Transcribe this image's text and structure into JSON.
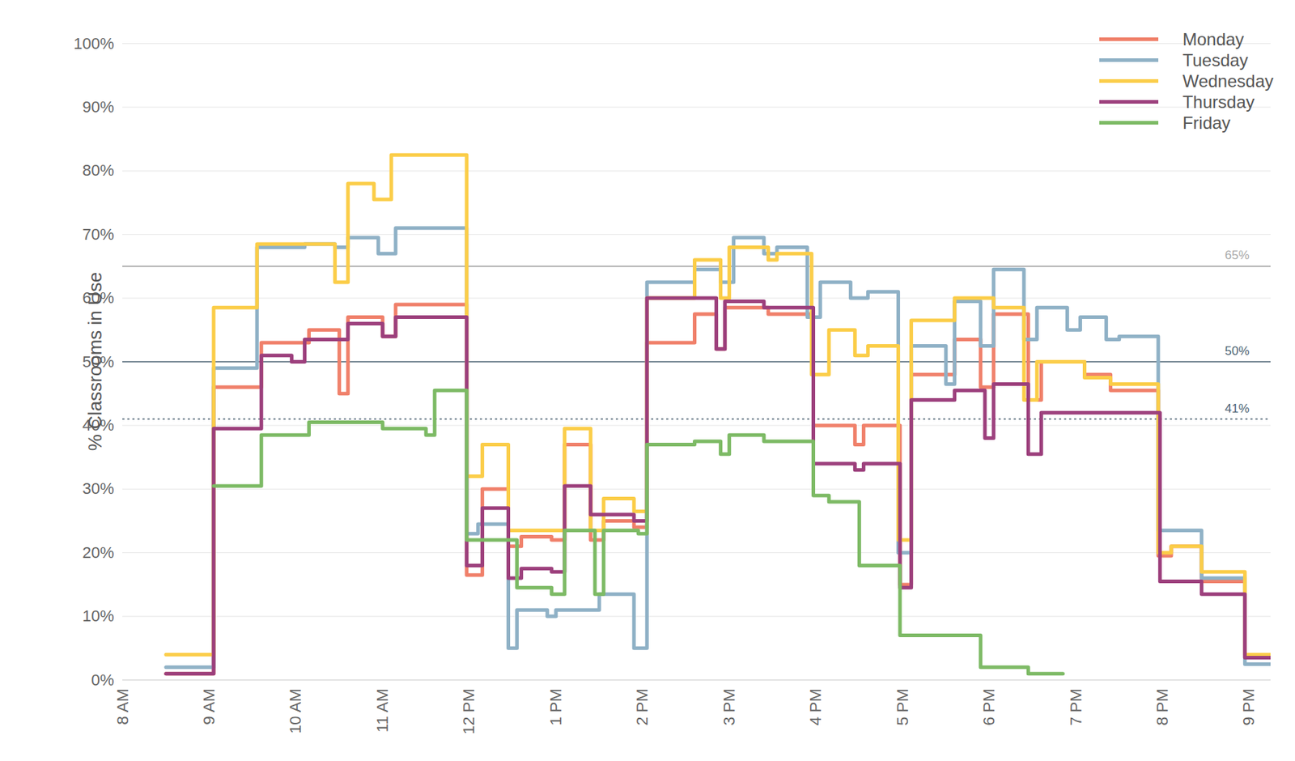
{
  "chart_data": {
    "type": "line",
    "y_label": "% Classrooms in Use",
    "xlim": [
      8,
      21.25
    ],
    "xticks": [
      {
        "value": 8,
        "label": "8 AM"
      },
      {
        "value": 9,
        "label": "9 AM"
      },
      {
        "value": 10,
        "label": "10 AM"
      },
      {
        "value": 11,
        "label": "11 AM"
      },
      {
        "value": 12,
        "label": "12 PM"
      },
      {
        "value": 13,
        "label": "1 PM"
      },
      {
        "value": 14,
        "label": "2 PM"
      },
      {
        "value": 15,
        "label": "3 PM"
      },
      {
        "value": 16,
        "label": "4 PM"
      },
      {
        "value": 17,
        "label": "5 PM"
      },
      {
        "value": 18,
        "label": "6 PM"
      },
      {
        "value": 19,
        "label": "7 PM"
      },
      {
        "value": 20,
        "label": "8 PM"
      },
      {
        "value": 21,
        "label": "9 PM"
      }
    ],
    "ylim": [
      0,
      100
    ],
    "yticks": [
      {
        "value": 0,
        "label": "0%"
      },
      {
        "value": 10,
        "label": "10%"
      },
      {
        "value": 20,
        "label": "20%"
      },
      {
        "value": 30,
        "label": "30%"
      },
      {
        "value": 40,
        "label": "40%"
      },
      {
        "value": 50,
        "label": "50%"
      },
      {
        "value": 60,
        "label": "60%"
      },
      {
        "value": 70,
        "label": "70%"
      },
      {
        "value": 80,
        "label": "80%"
      },
      {
        "value": 90,
        "label": "90%"
      },
      {
        "value": 100,
        "label": "100%"
      }
    ],
    "grid": true,
    "legend": "top-right",
    "reference_lines": [
      {
        "value": 65,
        "label": "65%",
        "color": "#aaaaaa",
        "line_style": "solid"
      },
      {
        "value": 50,
        "label": "50%",
        "color": "#4d6373",
        "line_style": "solid"
      },
      {
        "value": 41,
        "label": "41%",
        "color": "#4d6373",
        "line_style": "dotted"
      }
    ],
    "series": [
      {
        "name": "Monday",
        "color": "#f0806a",
        "x": [
          8.5,
          9.05,
          9.6,
          10.15,
          10.5,
          10.6,
          11.0,
          11.15,
          11.97,
          12.15,
          12.45,
          12.6,
          12.95,
          13.1,
          13.4,
          13.55,
          13.9,
          14.05,
          14.6,
          14.85,
          14.95,
          15.45,
          15.97,
          16.45,
          16.55,
          16.97,
          17.1,
          17.6,
          17.9,
          18.05,
          18.45,
          18.6,
          19.1,
          19.4,
          19.95,
          20.1,
          20.45,
          20.95,
          21.25
        ],
        "values": [
          1,
          46,
          53,
          55,
          45,
          57,
          54,
          59,
          16.5,
          30,
          21,
          22.5,
          22,
          37,
          22,
          25,
          24,
          53,
          57.5,
          52,
          58.5,
          57.5,
          40,
          37,
          40,
          15,
          48,
          53.5,
          46,
          57.5,
          44,
          50,
          48,
          45.5,
          19.5,
          21,
          15.5,
          3.5,
          3.5
        ]
      },
      {
        "name": "Tuesday",
        "color": "#8fb1c6",
        "x": [
          8.5,
          9.05,
          9.55,
          10.1,
          10.45,
          10.6,
          10.95,
          11.15,
          11.97,
          12.1,
          12.45,
          12.55,
          12.9,
          13.0,
          13.5,
          13.9,
          14.05,
          14.6,
          14.9,
          15.05,
          15.4,
          15.55,
          15.9,
          16.05,
          16.4,
          16.6,
          16.95,
          17.1,
          17.5,
          17.6,
          17.9,
          18.05,
          18.4,
          18.55,
          18.9,
          19.05,
          19.35,
          19.5,
          19.95,
          20.45,
          20.95,
          21.25
        ],
        "values": [
          2,
          49,
          68,
          68.5,
          68,
          69.5,
          67,
          71,
          23,
          24.5,
          5,
          11,
          10,
          11,
          13.5,
          5,
          62.5,
          64.5,
          62.5,
          69.5,
          67,
          68,
          57,
          62.5,
          60,
          61,
          20,
          52.5,
          46.5,
          59.5,
          52.5,
          64.5,
          53.5,
          58.5,
          55,
          57,
          53.5,
          54,
          23.5,
          16,
          2.5,
          2.5
        ]
      },
      {
        "name": "Wednesday",
        "color": "#fbcd48",
        "x": [
          8.5,
          9.05,
          9.55,
          10.45,
          10.6,
          10.9,
          11.1,
          11.97,
          12.15,
          12.45,
          13.1,
          13.4,
          13.55,
          13.9,
          14.05,
          14.6,
          14.9,
          15.0,
          15.45,
          15.55,
          15.95,
          16.15,
          16.45,
          16.6,
          16.95,
          17.1,
          17.6,
          18.05,
          18.4,
          18.55,
          19.1,
          19.4,
          19.95,
          20.1,
          20.45,
          20.95,
          21.25
        ],
        "values": [
          4,
          58.5,
          68.5,
          62.5,
          78,
          75.5,
          82.5,
          32,
          37,
          23.5,
          39.5,
          23.5,
          28.5,
          26.5,
          60,
          66,
          60,
          68,
          66,
          67,
          48,
          55,
          51,
          52.5,
          22,
          56.5,
          60,
          58.5,
          44,
          50,
          47.5,
          46.5,
          20,
          21,
          17,
          4,
          4
        ]
      },
      {
        "name": "Thursday",
        "color": "#9c3f7c",
        "x": [
          8.5,
          9.05,
          9.6,
          9.95,
          10.1,
          10.6,
          11.0,
          11.15,
          11.97,
          12.15,
          12.45,
          12.6,
          12.95,
          13.1,
          13.4,
          13.9,
          14.05,
          14.85,
          14.95,
          15.4,
          15.97,
          16.45,
          16.55,
          16.97,
          17.1,
          17.6,
          17.95,
          18.05,
          18.45,
          18.6,
          19.97,
          20.45,
          20.95,
          21.25
        ],
        "values": [
          1,
          39.5,
          51,
          50,
          53.5,
          56,
          54,
          57,
          18,
          27,
          16,
          17.5,
          17,
          30.5,
          26,
          25,
          60,
          52,
          59.5,
          58.5,
          34,
          33,
          34,
          14.5,
          44,
          45.5,
          38,
          46.5,
          35.5,
          42,
          15.5,
          13.5,
          3.5,
          3.5
        ]
      },
      {
        "name": "Friday",
        "color": "#7dba65",
        "x": [
          9.05,
          9.6,
          10.15,
          11.0,
          11.5,
          11.6,
          11.97,
          12.55,
          12.95,
          13.1,
          13.45,
          13.55,
          13.95,
          14.05,
          14.6,
          14.9,
          15.0,
          15.4,
          15.97,
          16.15,
          16.5,
          16.97,
          17.9,
          18.45,
          18.85
        ],
        "values": [
          30.5,
          38.5,
          40.5,
          39.5,
          38.5,
          45.5,
          22,
          14.5,
          13.5,
          23.5,
          13.5,
          23.5,
          23,
          37,
          37.5,
          35.5,
          38.5,
          37.5,
          29,
          28,
          18,
          7,
          2,
          1,
          1
        ]
      }
    ]
  }
}
